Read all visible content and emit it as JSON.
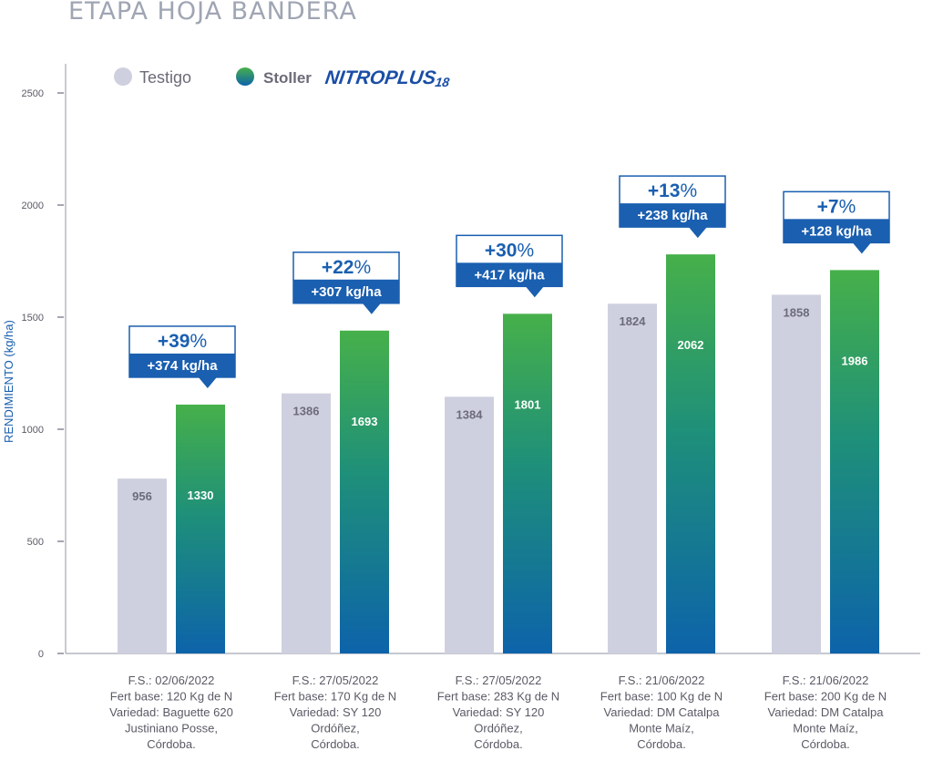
{
  "chart_data": {
    "type": "bar",
    "title": "ETAPA HOJA BANDERA",
    "ylabel": "RENDIMIENTO (kg/ha)",
    "xlabel": "",
    "ylim": [
      0,
      2500
    ],
    "yticks": [
      0,
      500,
      1000,
      1500,
      2000,
      2500
    ],
    "legend": {
      "position": "top-left",
      "entries": [
        {
          "label": "Testigo",
          "color": "#cfd0df"
        },
        {
          "label": "Stoller",
          "brand": "NITROPLUS",
          "brand_sub": "18",
          "color": "#2aa86a"
        }
      ]
    },
    "categories": [
      [
        "F.S.: 02/06/2022",
        "Fert base: 120 Kg de N",
        "Variedad: Baguette 620",
        "Justiniano Posse,",
        "Córdoba."
      ],
      [
        "F.S.: 27/05/2022",
        "Fert base: 170 Kg de N",
        "Variedad: SY 120",
        "Ordóñez,",
        "Córdoba."
      ],
      [
        "F.S.: 27/05/2022",
        "Fert base: 283 Kg de N",
        "Variedad: SY 120",
        "Ordóñez,",
        "Córdoba."
      ],
      [
        "F.S.: 21/06/2022",
        "Fert base: 100 Kg de N",
        "Variedad: DM Catalpa",
        "Monte Maíz,",
        "Córdoba."
      ],
      [
        "F.S.: 21/06/2022",
        "Fert base: 200 Kg de N",
        "Variedad: DM Catalpa",
        "Monte Maíz,",
        "Córdoba."
      ]
    ],
    "series": [
      {
        "name": "Testigo",
        "values": [
          956,
          1386,
          1384,
          1824,
          1858
        ],
        "bar_heights": [
          780,
          1160,
          1145,
          1560,
          1600
        ]
      },
      {
        "name": "Stoller NITROPLUS18",
        "values": [
          1330,
          1693,
          1801,
          2062,
          1986
        ],
        "bar_heights": [
          1110,
          1440,
          1515,
          1780,
          1710
        ]
      }
    ],
    "annotations": [
      {
        "pct_num": "+39",
        "pct_sign": "%",
        "kg": "+374 kg/ha"
      },
      {
        "pct_num": "+22",
        "pct_sign": "%",
        "kg": "+307 kg/ha"
      },
      {
        "pct_num": "+30",
        "pct_sign": "%",
        "kg": "+417 kg/ha"
      },
      {
        "pct_num": "+13",
        "pct_sign": "%",
        "kg": "+238 kg/ha"
      },
      {
        "pct_num": "+7",
        "pct_sign": "%",
        "kg": "+128 kg/ha"
      }
    ],
    "colors": {
      "testigo": "#cfd0df",
      "testigo_text": "#6b6b7a",
      "stoller_top": "#46b04a",
      "stoller_bottom": "#0d63aa",
      "accent_blue": "#1a5fb0",
      "axis": "#a5a7b2",
      "title": "#9fa5b3",
      "category_text": "#5a5a66",
      "legend_text": "#6b6b78",
      "brand_text": "#1a4ea6"
    }
  }
}
